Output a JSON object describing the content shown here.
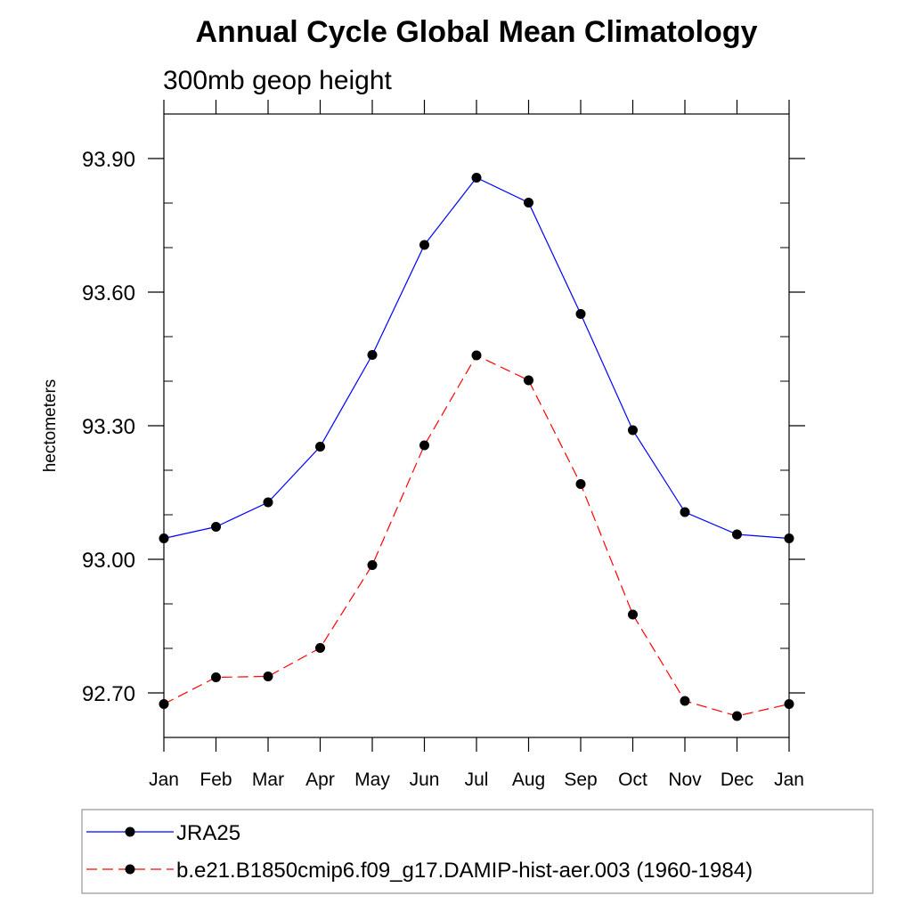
{
  "chart_data": {
    "type": "line",
    "title": "Annual Cycle Global Mean Climatology",
    "subtitle": "300mb geop height",
    "xlabel": "",
    "ylabel": "hectometers",
    "categories": [
      "Jan",
      "Feb",
      "Mar",
      "Apr",
      "May",
      "Jun",
      "Jul",
      "Aug",
      "Sep",
      "Oct",
      "Nov",
      "Dec",
      "Jan"
    ],
    "ylim": [
      92.6,
      94.0
    ],
    "yticks": [
      "93.90",
      "93.60",
      "93.30",
      "93.00",
      "92.70"
    ],
    "ytick_values": [
      93.9,
      93.6,
      93.3,
      93.0,
      92.7
    ],
    "yminor_step": 0.1,
    "grid": false,
    "legend_position": "bottom",
    "series": [
      {
        "name": "JRA25",
        "color": "#0000ff",
        "dash": "solid",
        "marker": "filled-circle",
        "values": [
          93.047,
          93.073,
          93.128,
          93.253,
          93.459,
          93.706,
          93.857,
          93.801,
          93.551,
          93.29,
          93.106,
          93.056,
          93.047
        ]
      },
      {
        "name": "b.e21.B1850cmip6.f09_g17.DAMIP-hist-aer.003 (1960-1984)",
        "color": "#ff0000",
        "dash": "dashed",
        "marker": "filled-circle",
        "values": [
          92.675,
          92.735,
          92.737,
          92.801,
          92.987,
          93.256,
          93.458,
          93.402,
          93.169,
          92.876,
          92.682,
          92.648,
          92.675
        ]
      }
    ]
  }
}
